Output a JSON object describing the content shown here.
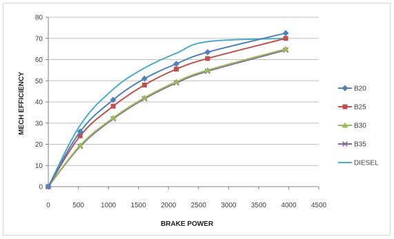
{
  "chart_data": {
    "type": "line",
    "title": "",
    "xlabel": "BRAKE POWER",
    "ylabel": "MECH EFFICIENCY",
    "xlim": [
      0,
      4500
    ],
    "ylim": [
      0,
      80
    ],
    "xticks": [
      0,
      500,
      1000,
      1500,
      2000,
      2500,
      3000,
      3500,
      4000,
      4500
    ],
    "yticks": [
      0,
      10,
      20,
      30,
      40,
      50,
      60,
      70,
      80
    ],
    "grid": "horizontal",
    "legend_position": "right",
    "series": [
      {
        "name": "B20",
        "color": "#4f81bd",
        "marker": "diamond",
        "x": [
          0,
          530,
          1080,
          1600,
          2130,
          2650,
          3950
        ],
        "y": [
          0,
          26,
          41,
          51,
          58,
          63.5,
          72.5
        ]
      },
      {
        "name": "B25",
        "color": "#c0504d",
        "marker": "square",
        "x": [
          0,
          530,
          1080,
          1600,
          2130,
          2650,
          3950
        ],
        "y": [
          0,
          24,
          38,
          48,
          55.5,
          60.5,
          70
        ]
      },
      {
        "name": "B30",
        "color": "#9bbb59",
        "marker": "triangle",
        "x": [
          0,
          530,
          1080,
          1600,
          2130,
          2650,
          3950
        ],
        "y": [
          0,
          19.5,
          32.5,
          42,
          49.5,
          55,
          65
        ]
      },
      {
        "name": "B35",
        "color": "#8064a2",
        "marker": "x",
        "x": [
          0,
          530,
          1080,
          1600,
          2130,
          2650,
          3950
        ],
        "y": [
          0,
          19,
          32,
          41.5,
          49,
          54.5,
          64.5
        ]
      },
      {
        "name": "DIESEL",
        "color": "#4bacc6",
        "marker": "none",
        "x": [
          0,
          530,
          1080,
          1600,
          2130,
          2650,
          3950
        ],
        "y": [
          0,
          29,
          46,
          56,
          63,
          68.5,
          70
        ]
      }
    ]
  }
}
